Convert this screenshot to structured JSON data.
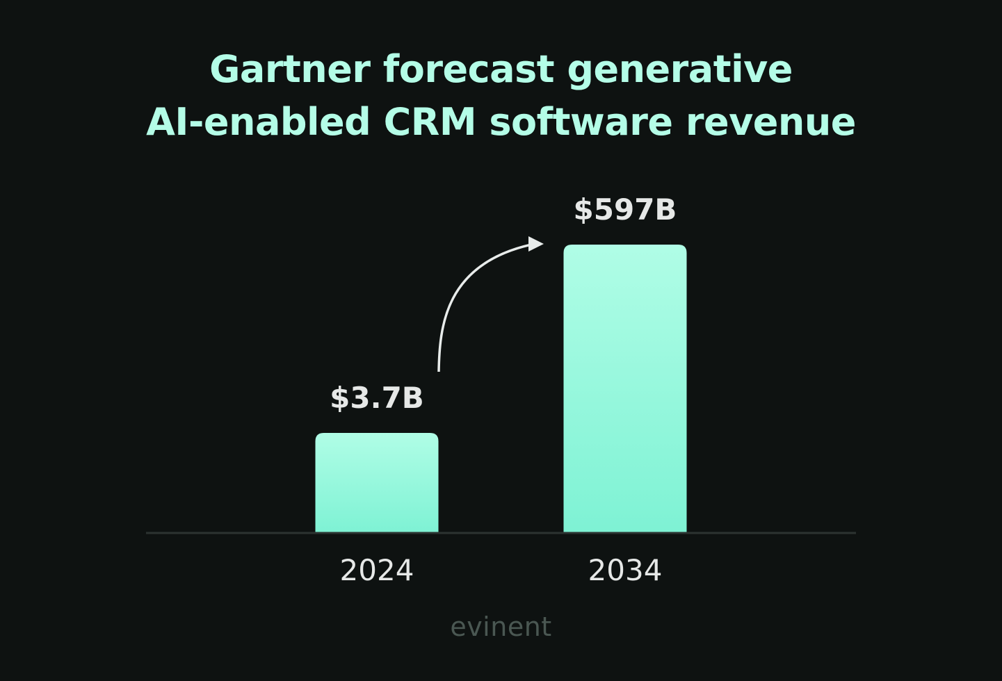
{
  "chart_data": {
    "type": "bar",
    "title_lines": [
      "Gartner forecast generative",
      "AI-enabled CRM software revenue"
    ],
    "categories": [
      "2024",
      "2034"
    ],
    "values": [
      3.7,
      597
    ],
    "value_labels": [
      "$3.7B",
      "$597B"
    ],
    "xlabel": "",
    "ylabel": "",
    "grid": false,
    "legend": "none",
    "annotation": "arrow-from-2024-to-2034"
  },
  "brand": "evinent",
  "colors": {
    "background": "#0e1211",
    "title": "#b4fde7",
    "bar_top": "#b0fde6",
    "bar_bottom": "#7ef2d4",
    "labels": "#e6e8e7",
    "axis": "#2c3331",
    "brand": "#4a5752"
  }
}
